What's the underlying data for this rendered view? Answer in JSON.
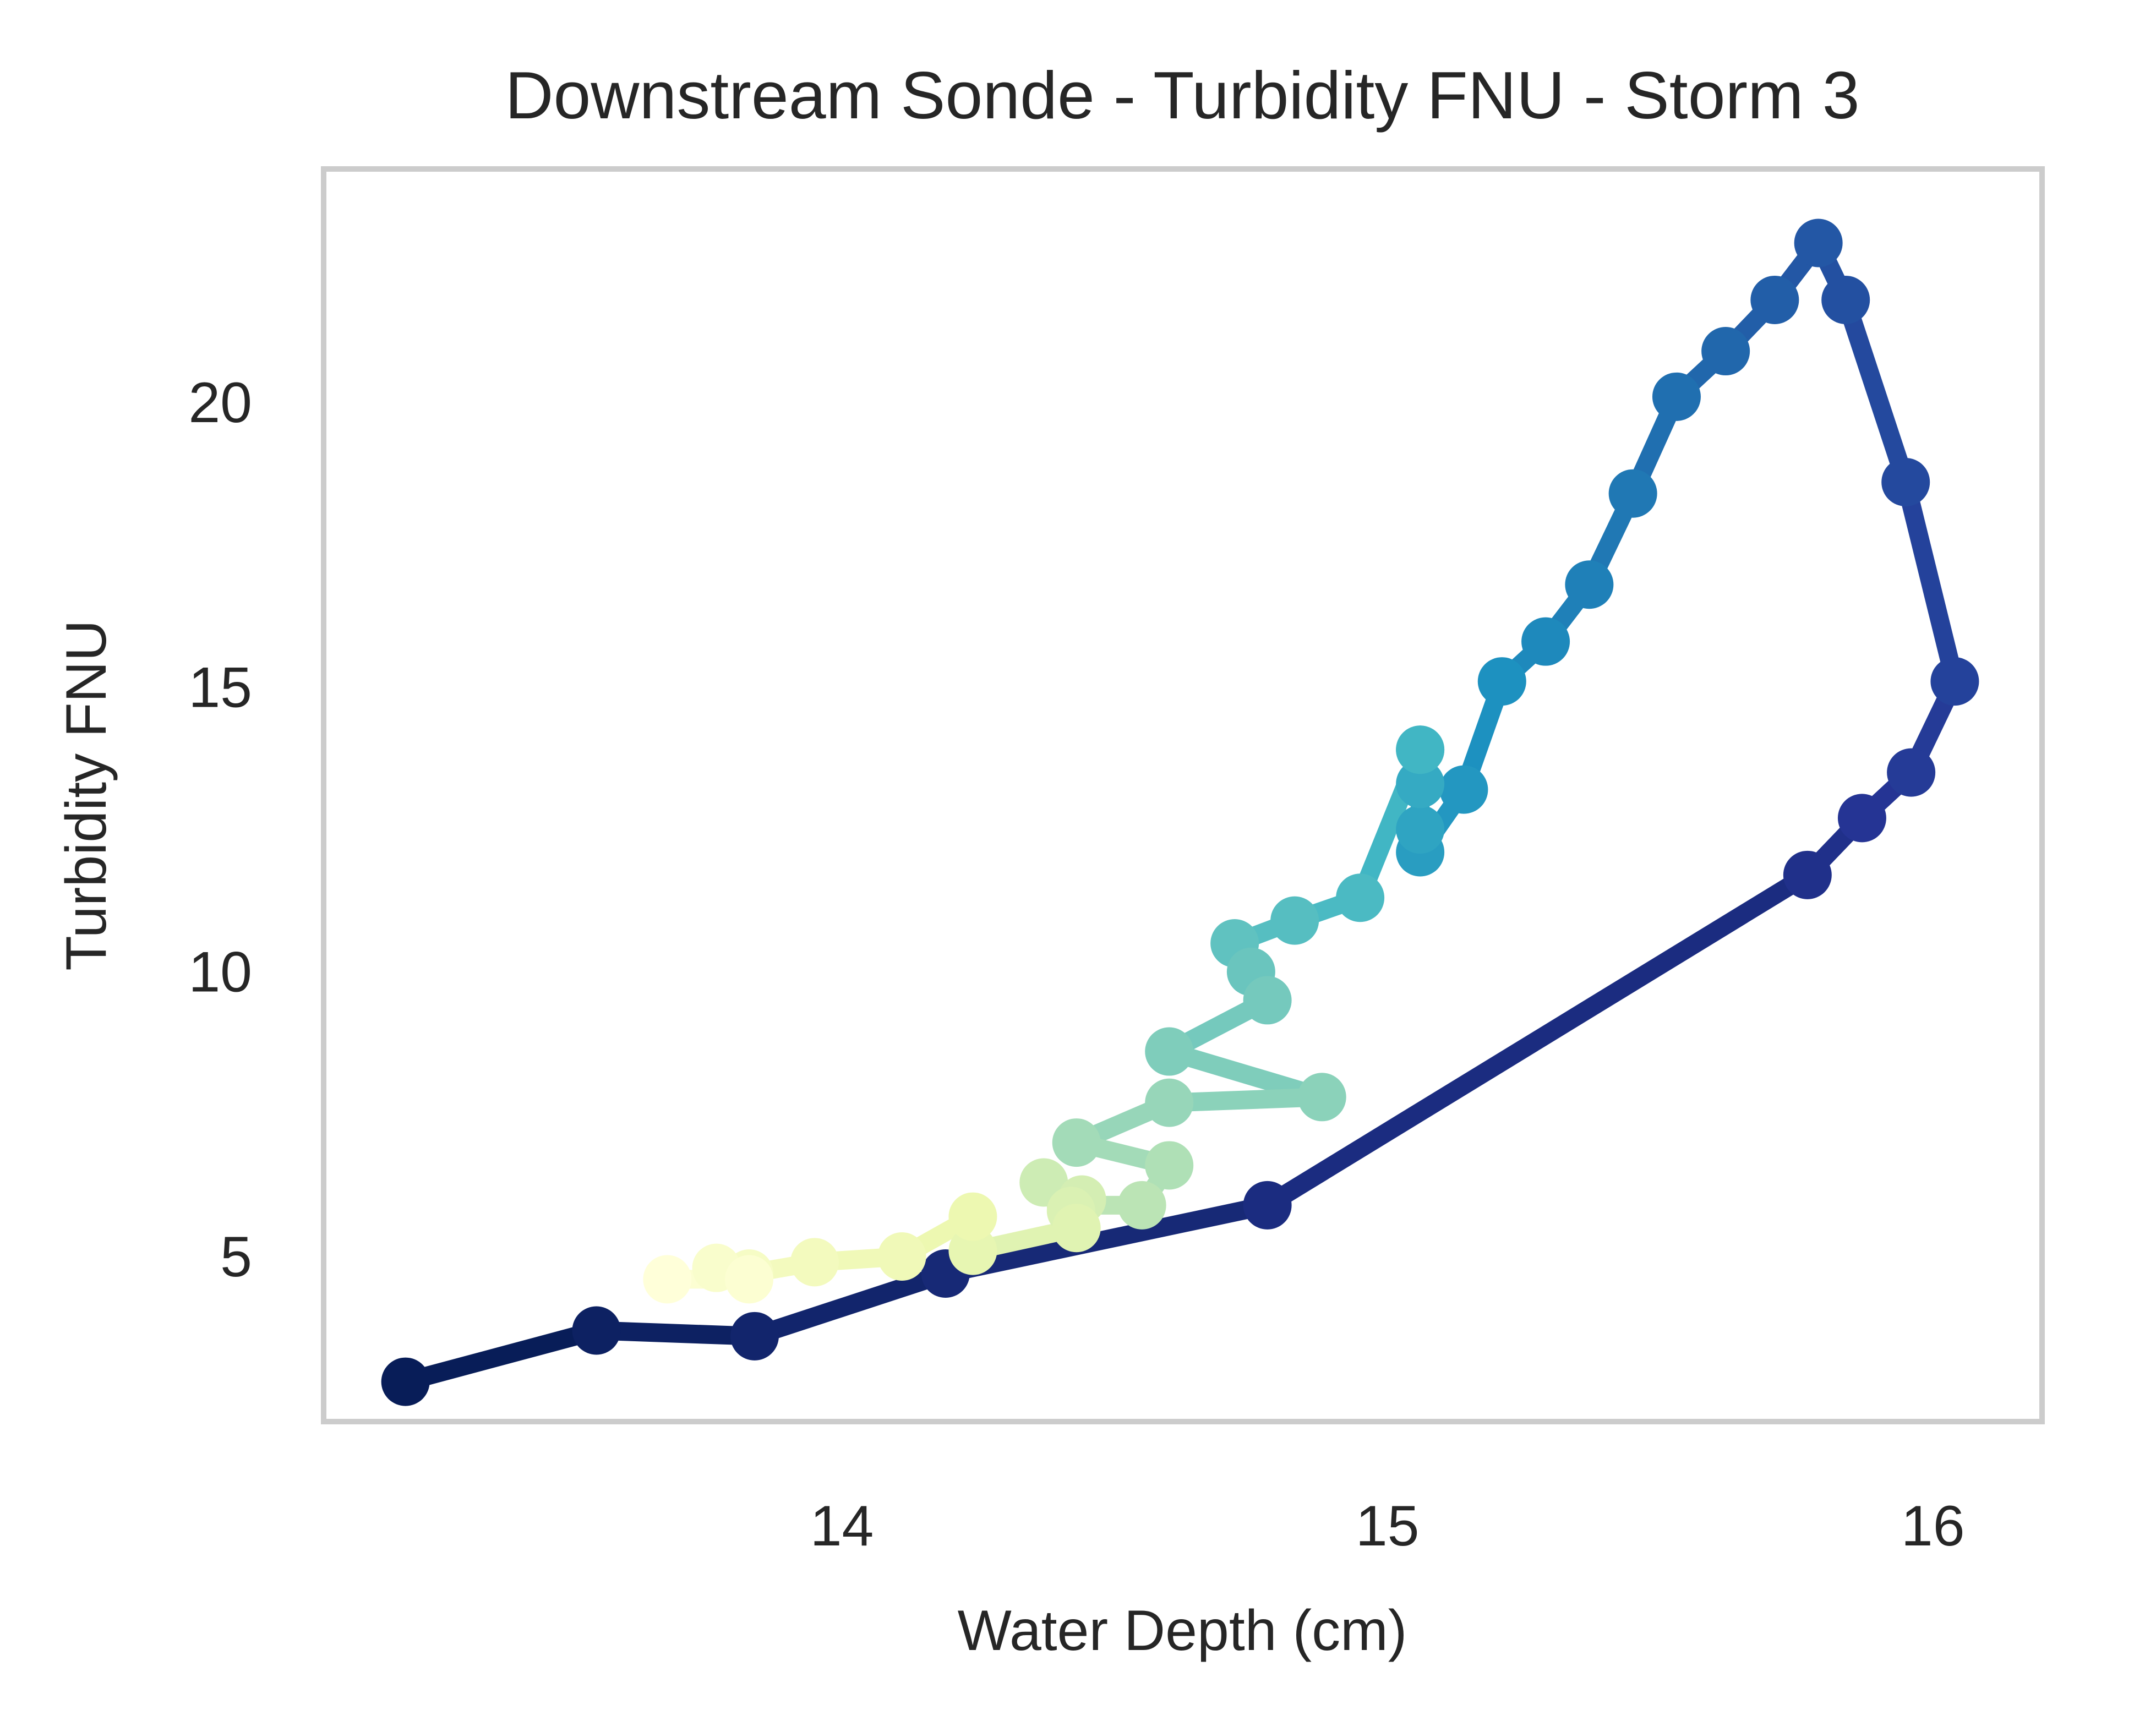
{
  "chart_data": {
    "type": "line",
    "title": "Downstream Sonde - Turbidity FNU - Storm 3",
    "xlabel": "Water Depth (cm)",
    "ylabel": "Turbidity FNU",
    "xlim": [
      13.05,
      16.2
    ],
    "ylim": [
      2.1,
      24.1
    ],
    "xticks": [
      14,
      15,
      16
    ],
    "xtick_labels": [
      "14",
      "15",
      "16"
    ],
    "yticks": [
      5,
      10,
      15,
      20
    ],
    "ytick_labels": [
      "5",
      "10",
      "15",
      "20"
    ],
    "grid": false,
    "legend": "none",
    "colormap": "YlGnBu_r (color encodes time order, dark = start)",
    "series": [
      {
        "x": [
          13.2,
          13.55,
          13.84,
          14.19,
          14.78,
          15.77,
          15.87,
          15.96,
          16.04,
          15.95,
          15.84,
          15.79,
          15.71,
          15.62,
          15.53,
          15.45,
          15.37,
          15.29,
          15.21,
          15.14,
          15.06,
          15.06,
          15.06,
          15.06,
          15.06,
          14.95,
          14.83,
          14.72,
          14.75,
          14.78,
          14.6,
          14.88,
          14.6,
          14.43,
          14.6,
          14.55,
          14.42,
          14.37,
          14.44,
          14.42,
          14.43,
          14.24,
          14.24,
          14.11,
          13.95,
          13.83,
          13.77,
          13.83,
          13.68
        ],
        "y": [
          2.8,
          3.7,
          3.6,
          4.7,
          5.9,
          11.7,
          12.7,
          13.5,
          15.1,
          18.6,
          21.8,
          22.8,
          21.8,
          20.9,
          20.1,
          18.4,
          16.8,
          15.8,
          15.1,
          13.2,
          12.1,
          12.5,
          13.3,
          13.9,
          13.9,
          11.3,
          10.9,
          10.5,
          10.0,
          9.5,
          8.6,
          7.8,
          7.7,
          7.0,
          6.6,
          5.9,
          5.9,
          6.3,
          6.0,
          5.8,
          5.5,
          5.1,
          5.7,
          5.0,
          4.9,
          4.7,
          4.8,
          4.6,
          4.6
        ]
      }
    ]
  }
}
